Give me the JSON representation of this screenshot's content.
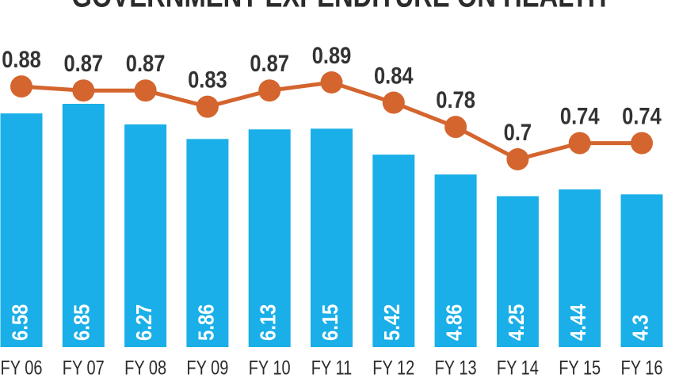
{
  "chart_data": {
    "type": "bar",
    "title": "GOVERNMENT EXPENDITURE ON HEALTH",
    "categories": [
      "FY 06",
      "FY 07",
      "FY 08",
      "FY 09",
      "FY 10",
      "FY 11",
      "FY 12",
      "FY 13",
      "FY 14",
      "FY 15",
      "FY 16"
    ],
    "series": [
      {
        "type": "bar",
        "color": "#1aafe8",
        "values": [
          6.58,
          6.85,
          6.27,
          5.86,
          6.13,
          6.15,
          5.42,
          4.86,
          4.25,
          4.44,
          4.3
        ]
      },
      {
        "type": "line",
        "axis": "y2",
        "color": "#d4652e",
        "values": [
          0.88,
          0.87,
          0.87,
          0.83,
          0.87,
          0.89,
          0.84,
          0.78,
          0.7,
          0.74,
          0.74
        ]
      }
    ]
  }
}
